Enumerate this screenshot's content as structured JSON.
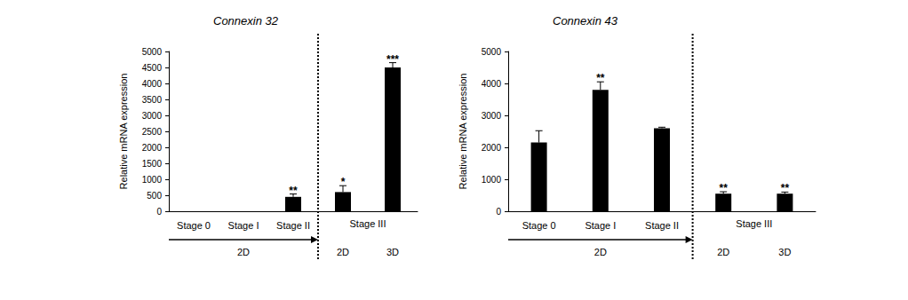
{
  "chart_data": [
    {
      "type": "bar",
      "title": "Connexin 32",
      "y_label": "Relative mRNA expression",
      "categories": [
        "Stage 0",
        "Stage I",
        "Stage II",
        "2D",
        "3D"
      ],
      "values": [
        0,
        0,
        450,
        600,
        4500
      ],
      "errors": [
        0,
        0,
        90,
        200,
        150
      ],
      "significance": [
        null,
        null,
        "**",
        "*",
        "***"
      ],
      "color": "#000000",
      "ylim": [
        0,
        5000
      ],
      "yticks": [
        0,
        500,
        1000,
        1500,
        2000,
        2500,
        3000,
        3500,
        4000,
        4500,
        5000
      ],
      "grid": false,
      "span_labels": [
        {
          "text": "Stage III",
          "from": 3,
          "to": 4
        }
      ],
      "arrow_labels": [
        {
          "text": "2D",
          "from": 0,
          "to": 2
        }
      ]
    },
    {
      "type": "bar",
      "title": "Connexin 43",
      "y_label": "Relative mRNA expression",
      "categories": [
        "Stage 0",
        "Stage I",
        "Stage II",
        "2D",
        "3D"
      ],
      "values": [
        2150,
        3800,
        2600,
        550,
        550
      ],
      "errors": [
        370,
        250,
        30,
        60,
        50
      ],
      "significance": [
        null,
        "**",
        null,
        "**",
        "**"
      ],
      "color": "#000000",
      "ylim": [
        0,
        5000
      ],
      "yticks": [
        0,
        1000,
        2000,
        3000,
        4000,
        5000
      ],
      "grid": false,
      "span_labels": [
        {
          "text": "Stage III",
          "from": 3,
          "to": 4
        }
      ],
      "arrow_labels": [
        {
          "text": "2D",
          "from": 0,
          "to": 2
        }
      ]
    }
  ]
}
